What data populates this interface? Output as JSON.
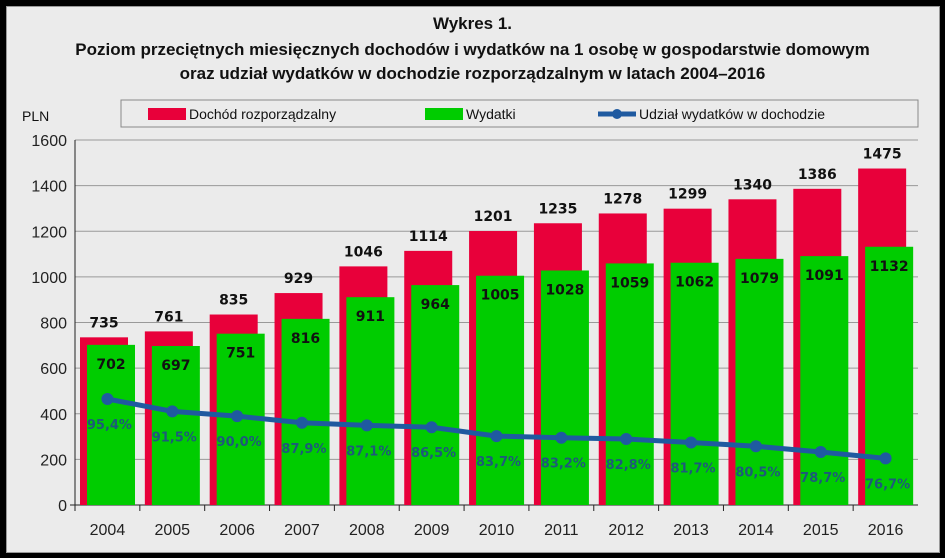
{
  "chart_data": {
    "type": "bar",
    "title": "Wykres 1.",
    "subtitle_lines": [
      "Poziom przeciętnych miesięcznych dochodów i wydatków na 1 osobę w gospodarstwie domowym",
      "oraz udział wydatków w dochodzie rozporządzalnym w latach 2004–2016"
    ],
    "ylabel": "PLN",
    "ylim": [
      0,
      1600
    ],
    "yticks": [
      0,
      200,
      400,
      600,
      800,
      1000,
      1200,
      1400,
      1600
    ],
    "grid": true,
    "legend_placement": "top",
    "categories": [
      "2004",
      "2005",
      "2006",
      "2007",
      "2008",
      "2009",
      "2010",
      "2011",
      "2012",
      "2013",
      "2014",
      "2015",
      "2016"
    ],
    "series": [
      {
        "name": "Dochód rozporządzalny",
        "type": "bar",
        "color": "#e8003a",
        "values": [
          735,
          761,
          835,
          929,
          1046,
          1114,
          1201,
          1235,
          1278,
          1299,
          1340,
          1386,
          1475
        ]
      },
      {
        "name": "Wydatki",
        "type": "bar",
        "color": "#00cc00",
        "values": [
          702,
          697,
          751,
          816,
          911,
          964,
          1005,
          1028,
          1059,
          1062,
          1079,
          1091,
          1132
        ]
      },
      {
        "name": "Udział wydatków w dochodzie",
        "type": "line",
        "color": "#1f5aa0",
        "axis": "secondary",
        "values": [
          95.4,
          91.5,
          90.0,
          87.9,
          87.1,
          86.5,
          83.7,
          83.2,
          82.8,
          81.7,
          80.5,
          78.7,
          76.7
        ],
        "labels": [
          "95,4%",
          "91,5%",
          "90,0%",
          "87,9%",
          "87,1%",
          "86,5%",
          "83,7%",
          "83,2%",
          "82,8%",
          "81,7%",
          "80,5%",
          "78,7%",
          "76,7%"
        ]
      }
    ],
    "y2lim": [
      62,
      177
    ]
  }
}
